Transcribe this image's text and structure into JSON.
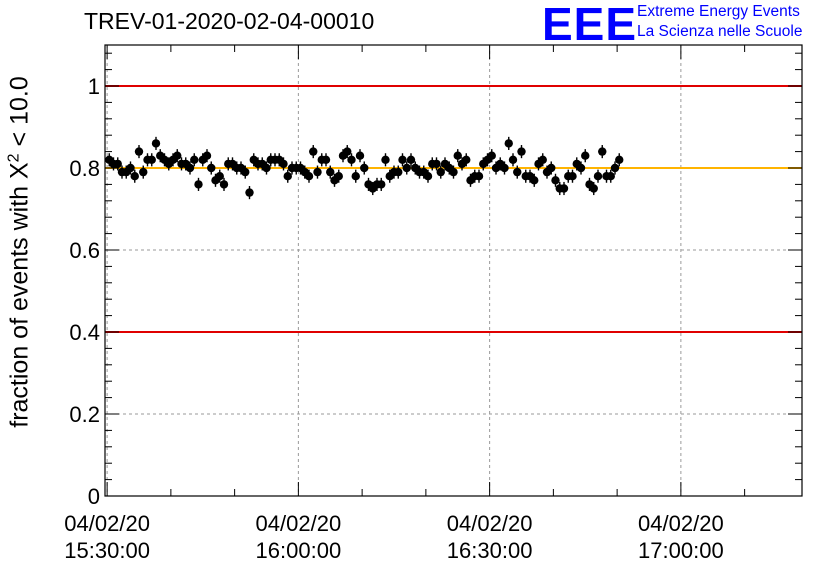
{
  "title": "TREV-01-2020-02-04-00010",
  "logo": {
    "mark": "EEE",
    "line1": "Extreme Energy Events",
    "line2": "La Scienza nelle Scuole"
  },
  "ylabel": {
    "prefix": "fraction of events with ",
    "symbol": "X",
    "sup": "2",
    "suffix": " < 10.0"
  },
  "chart_data": {
    "type": "scatter",
    "title": "TREV-01-2020-02-04-00010",
    "xlabel": "",
    "ylabel": "fraction of events with X2 < 10.0",
    "xlim": [
      "2020-02-04 15:29:40",
      "2020-02-04 17:19:00"
    ],
    "ylim": [
      0,
      1.1
    ],
    "yticks": [
      0,
      0.2,
      0.4,
      0.6,
      0.8,
      1
    ],
    "ytick_labels": [
      "0",
      "0.2",
      "0.4",
      "0.6",
      "0.8",
      "1"
    ],
    "xticks": [
      "2020-02-04 15:30:00",
      "2020-02-04 16:00:00",
      "2020-02-04 16:30:00",
      "2020-02-04 17:00:00"
    ],
    "xtick_labels": [
      [
        "04/02/20",
        "15:30:00"
      ],
      [
        "04/02/20",
        "16:00:00"
      ],
      [
        "04/02/20",
        "16:30:00"
      ],
      [
        "04/02/20",
        "17:00:00"
      ]
    ],
    "grid": true,
    "reference_lines": [
      {
        "y": 1.0,
        "color": "#e00000"
      },
      {
        "y": 0.4,
        "color": "#e00000"
      },
      {
        "y": 0.8,
        "color": "#ffb400"
      }
    ],
    "marker_color": "#000000",
    "error_bar": 0.016,
    "x_start": "2020-02-04 15:29:40",
    "x_step_seconds": 40,
    "y": [
      0.82,
      0.81,
      0.81,
      0.79,
      0.79,
      0.8,
      0.78,
      0.84,
      0.79,
      0.82,
      0.82,
      0.86,
      0.83,
      0.82,
      0.81,
      0.82,
      0.83,
      0.81,
      0.81,
      0.8,
      0.82,
      0.76,
      0.82,
      0.83,
      0.8,
      0.77,
      0.78,
      0.76,
      0.81,
      0.81,
      0.8,
      0.8,
      0.79,
      0.74,
      0.82,
      0.81,
      0.81,
      0.8,
      0.82,
      0.82,
      0.82,
      0.81,
      0.78,
      0.8,
      0.8,
      0.8,
      0.79,
      0.78,
      0.84,
      0.79,
      0.82,
      0.82,
      0.79,
      0.77,
      0.78,
      0.83,
      0.84,
      0.82,
      0.78,
      0.83,
      0.8,
      0.76,
      0.75,
      0.76,
      0.76,
      0.82,
      0.78,
      0.79,
      0.79,
      0.82,
      0.8,
      0.82,
      0.8,
      0.79,
      0.79,
      0.78,
      0.81,
      0.81,
      0.79,
      0.81,
      0.8,
      0.79,
      0.83,
      0.81,
      0.82,
      0.77,
      0.78,
      0.78,
      0.81,
      0.82,
      0.83,
      0.8,
      0.81,
      0.8,
      0.86,
      0.82,
      0.79,
      0.84,
      0.78,
      0.78,
      0.77,
      0.81,
      0.82,
      0.79,
      0.8,
      0.77,
      0.75,
      0.75,
      0.78,
      0.78,
      0.81,
      0.8,
      0.83,
      0.76,
      0.75,
      0.78,
      0.84,
      0.78,
      0.78,
      0.8,
      0.82
    ]
  }
}
